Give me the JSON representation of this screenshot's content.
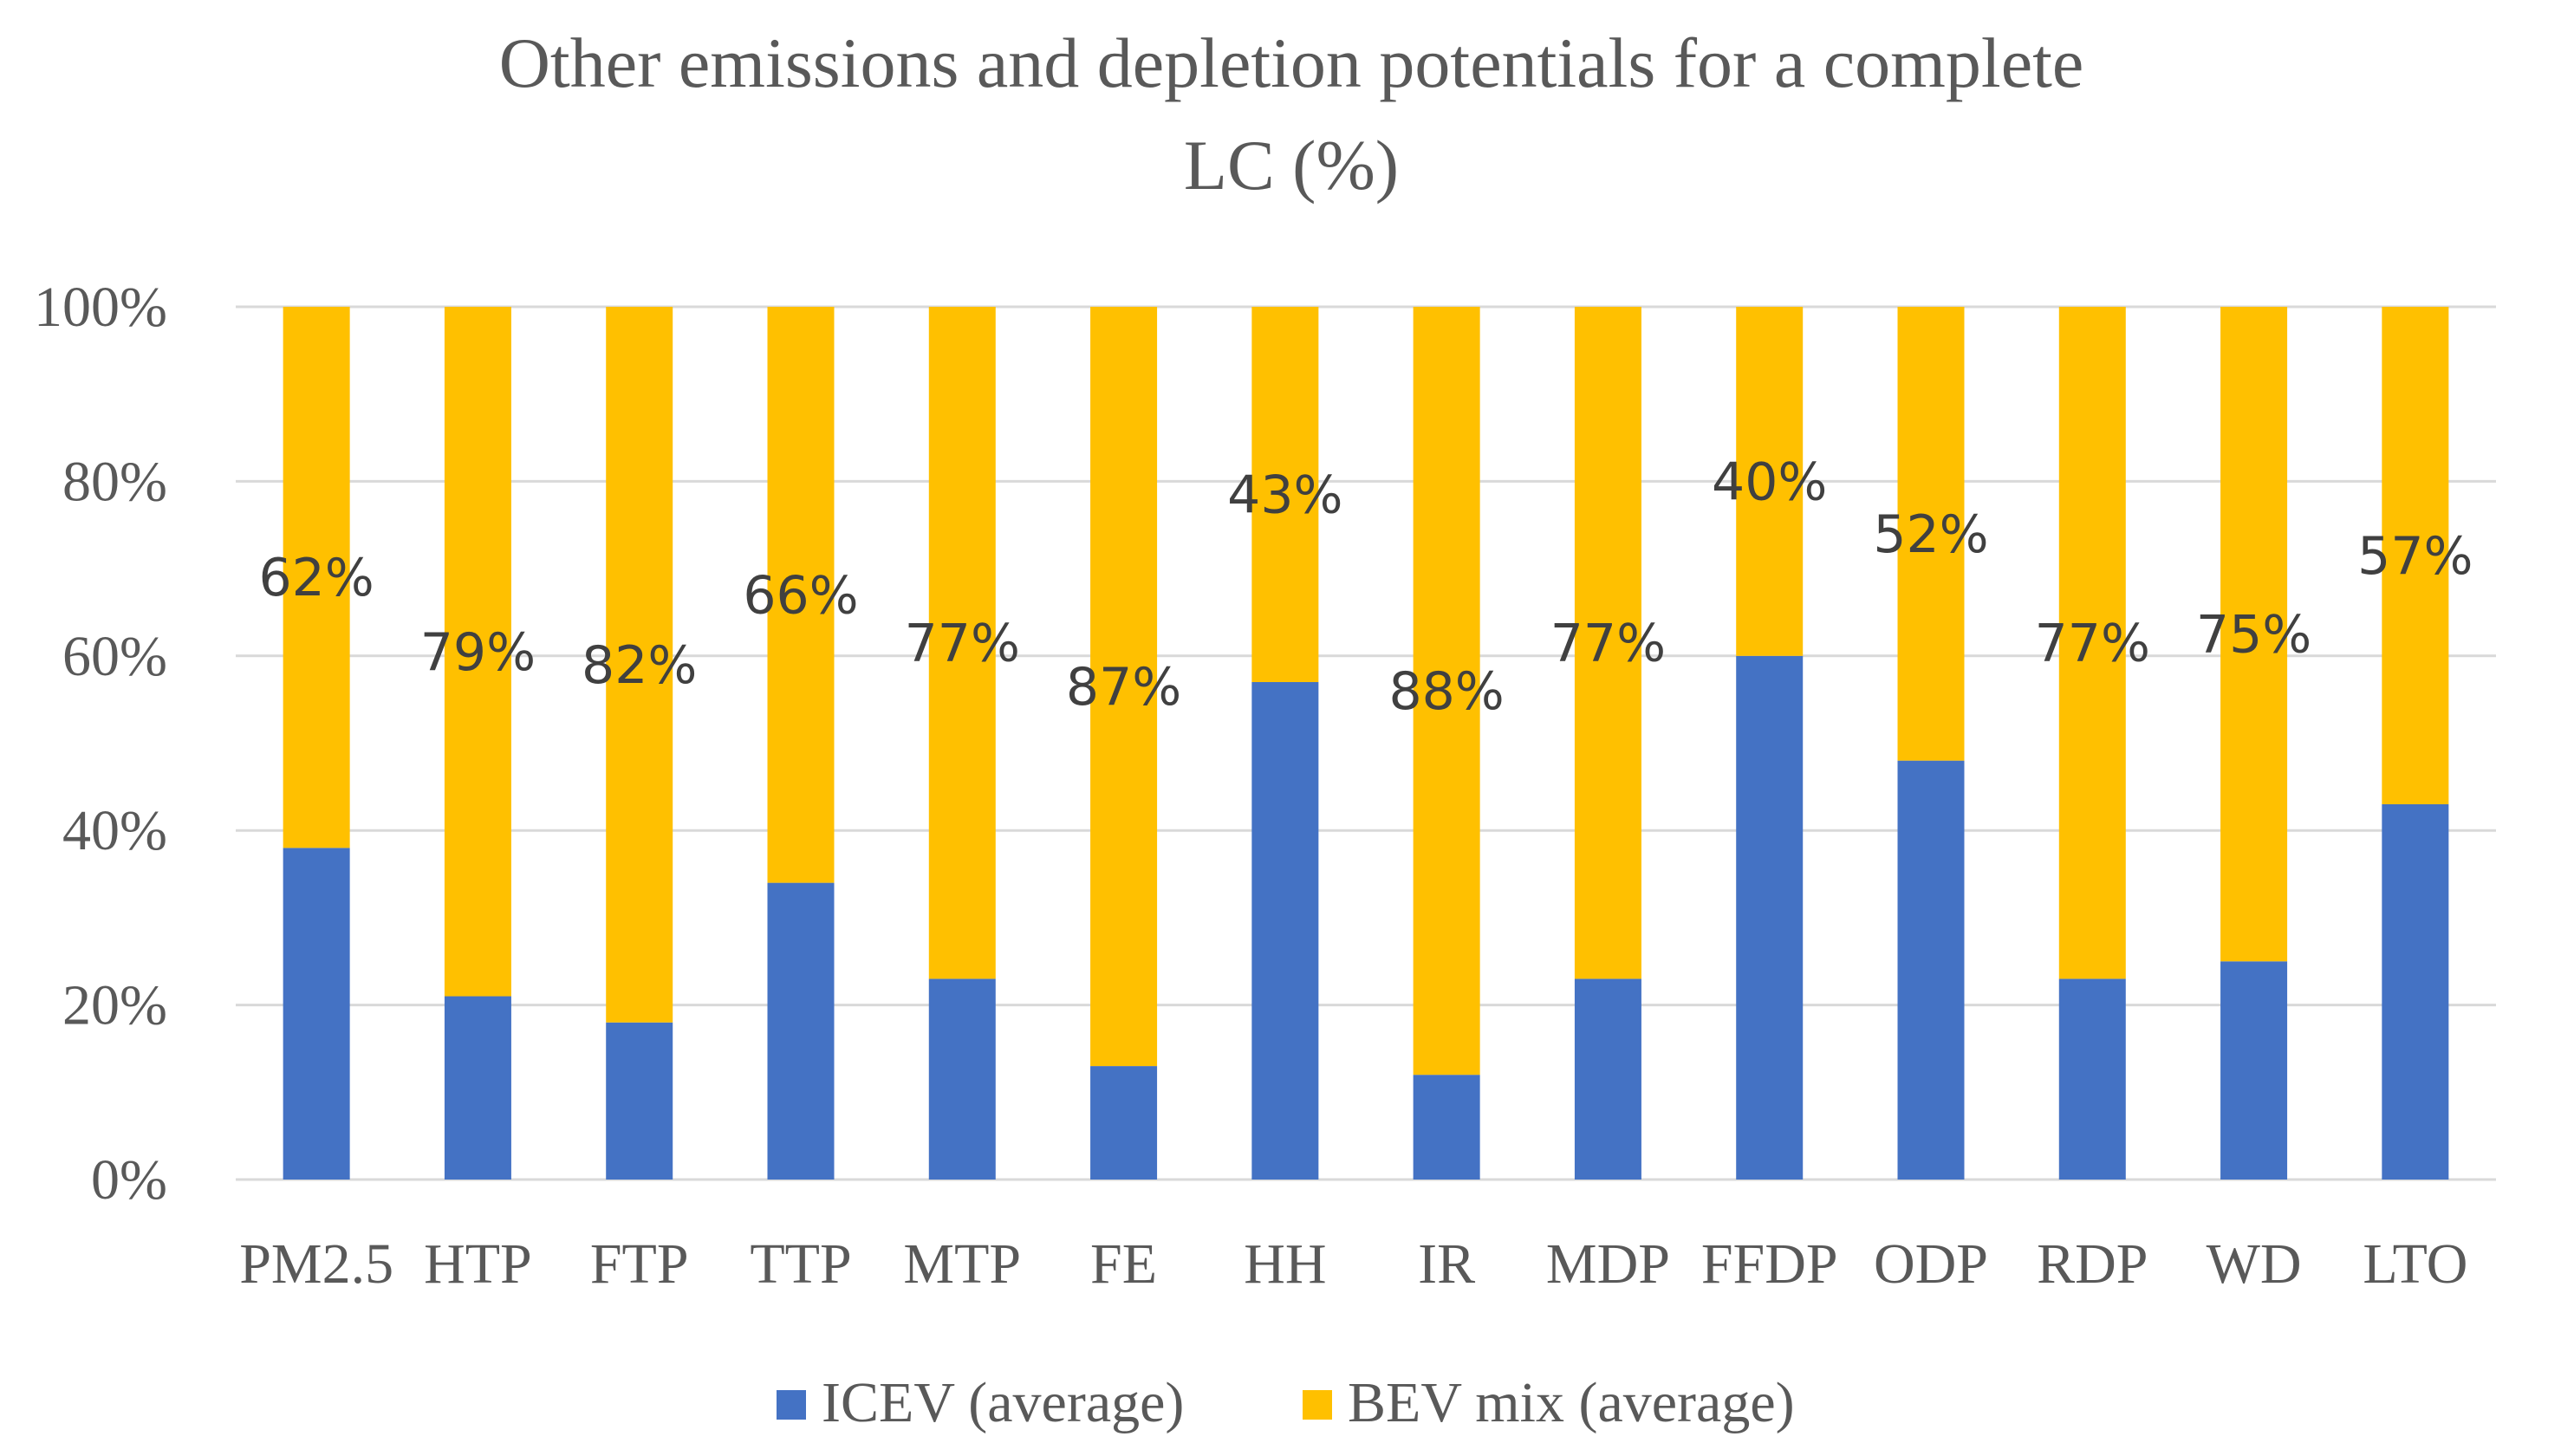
{
  "chart_data": {
    "type": "bar",
    "stacked": true,
    "title_lines": [
      "Other emissions and depletion potentials for a complete",
      "LC (%)"
    ],
    "categories": [
      "PM2.5",
      "HTP",
      "FTP",
      "TTP",
      "MTP",
      "FE",
      "HH",
      "IR",
      "MDP",
      "FFDP",
      "ODP",
      "RDP",
      "WD",
      "LTO"
    ],
    "series": [
      {
        "name": "ICEV (average)",
        "color": "#4472C4",
        "values": [
          38,
          21,
          18,
          34,
          23,
          13,
          57,
          12,
          23,
          60,
          48,
          23,
          25,
          43
        ]
      },
      {
        "name": "BEV mix (average)",
        "color": "#FFC000",
        "values": [
          62,
          79,
          82,
          66,
          77,
          87,
          43,
          88,
          77,
          40,
          52,
          77,
          75,
          57
        ],
        "data_labels": [
          "62%",
          "79%",
          "82%",
          "66%",
          "77%",
          "87%",
          "43%",
          "88%",
          "77%",
          "40%",
          "52%",
          "77%",
          "75%",
          "57%"
        ]
      }
    ],
    "y_ticks": [
      "0%",
      "20%",
      "40%",
      "60%",
      "80%",
      "100%"
    ],
    "ylim": [
      0,
      100
    ],
    "grid": true,
    "legend_position": "bottom"
  }
}
